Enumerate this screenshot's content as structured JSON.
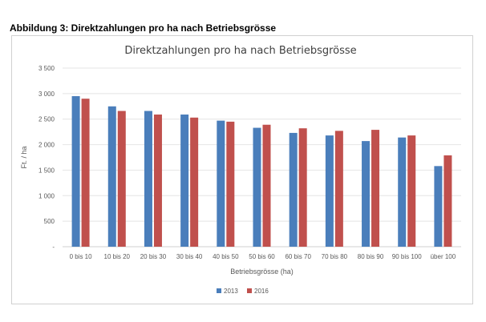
{
  "figure_title": "Abbildung 3: Direktzahlungen pro ha nach Betriebsgrösse",
  "chart_data": {
    "type": "bar",
    "title": "Direktzahlungen pro ha nach Betriebsgrösse",
    "xlabel": "Betriebsgrösse (ha)",
    "ylabel": "Ft. / ha",
    "ylim": [
      0,
      3500
    ],
    "yticks": [
      0,
      500,
      1000,
      1500,
      2000,
      2500,
      3000,
      3500
    ],
    "ytick_labels": [
      "-",
      "500",
      "1 000",
      "1 500",
      "2 000",
      "2 500",
      "3 000",
      "3 500"
    ],
    "grid": true,
    "legend": "bottom",
    "categories": [
      "0 bis 10",
      "10 bis 20",
      "20 bis 30",
      "30 bis 40",
      "40 bis 50",
      "50 bis 60",
      "60 bis 70",
      "70 bis 80",
      "80 bis 90",
      "90 bis 100",
      "über 100"
    ],
    "series": [
      {
        "name": "2013",
        "color": "#4a7ebb",
        "values": [
          2950,
          2750,
          2660,
          2590,
          2470,
          2330,
          2230,
          2180,
          2070,
          2140,
          1580
        ]
      },
      {
        "name": "2016",
        "color": "#c0504d",
        "values": [
          2900,
          2660,
          2590,
          2530,
          2450,
          2390,
          2320,
          2270,
          2290,
          2180,
          1790
        ]
      }
    ]
  }
}
